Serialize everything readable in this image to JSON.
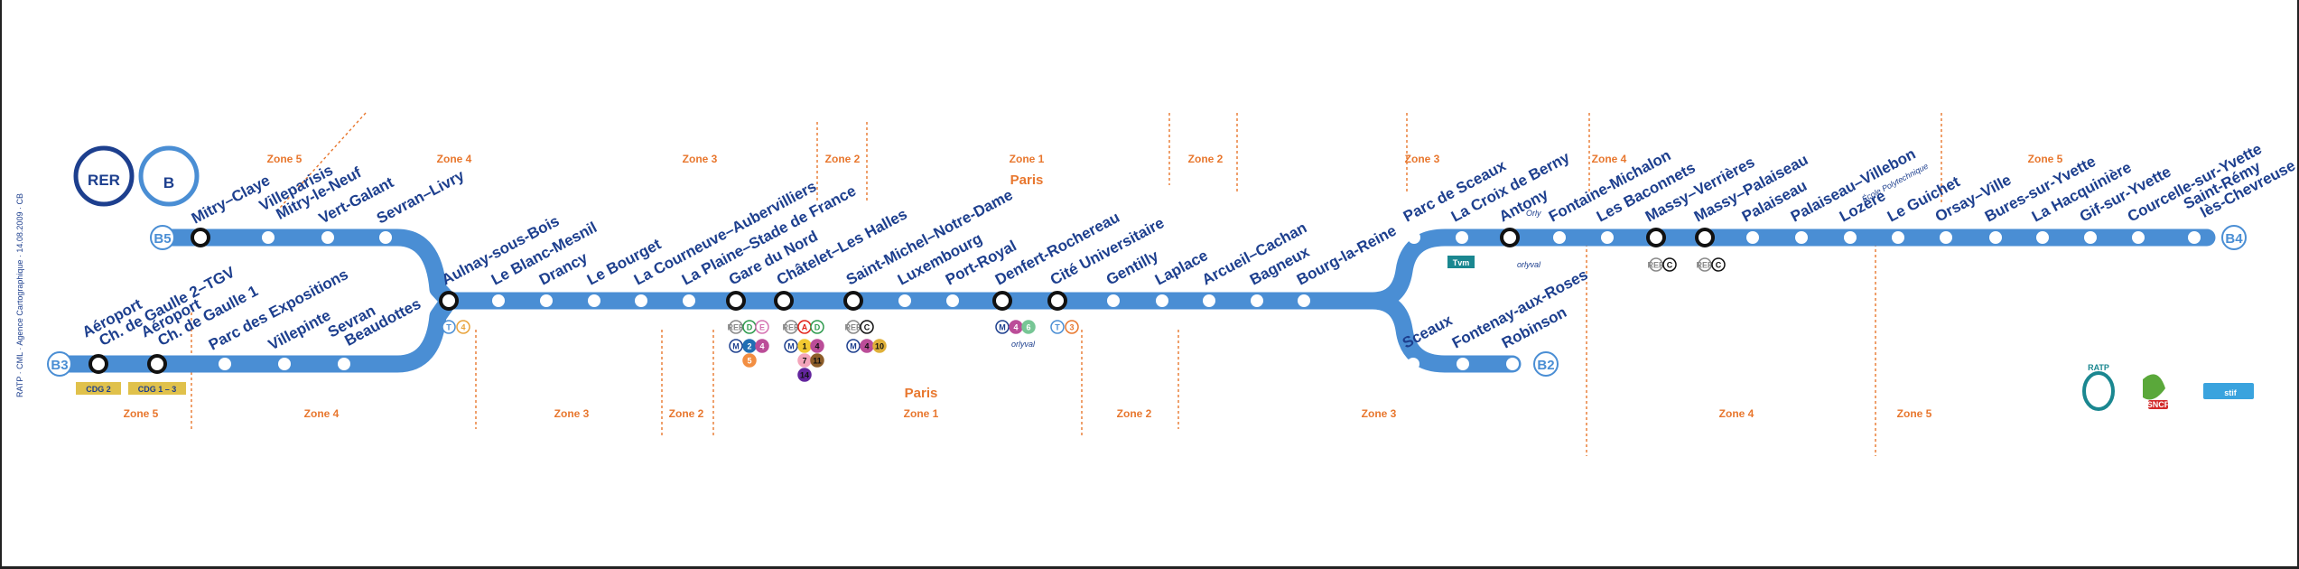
{
  "logo": {
    "rer": "RER",
    "line": "B"
  },
  "colors": {
    "line": "#4a8ed4",
    "label": "#1d3f8e",
    "zone": "#e8772e",
    "access": "#2a5db0"
  },
  "branch_labels": {
    "b5": "B5",
    "b3": "B3",
    "b4": "B4",
    "b2": "B2"
  },
  "terminal_labels": {
    "cdg2": "CDG 2",
    "cdg13": "CDG 1 – 3"
  },
  "zones_top": [
    "Zone 5",
    "Zone 4",
    "Zone 3",
    "Zone 2",
    "Zone 1",
    "Zone 2",
    "Zone 3",
    "Zone 4",
    "Zone 5"
  ],
  "zones_bottom": [
    "Zone 5",
    "Zone 4",
    "Zone 3",
    "Zone 2",
    "Zone 1",
    "Zone 2",
    "Zone 3",
    "Zone 4",
    "Zone 5"
  ],
  "paris": {
    "top": "Paris",
    "bottom": "Paris"
  },
  "stations": {
    "b5": [
      "Mitry–Claye",
      "Villeparisis\nMitry-le-Neuf",
      "Vert-Galant",
      "Sevran–Livry"
    ],
    "b3": [
      "Aéroport\nCh. de Gaulle 2–TGV",
      "Aéroport\nCh. de Gaulle 1",
      "Parc des Expositions",
      "Villepinte",
      "Sevran\nBeaudottes"
    ],
    "trunk": [
      "Aulnay-sous-Bois",
      "Le Blanc-Mesnil",
      "Drancy",
      "Le Bourget",
      "La Courneuve–Aubervilliers",
      "La Plaine–Stade de France",
      "Gare du Nord",
      "Châtelet–Les Halles",
      "Saint-Michel–Notre-Dame",
      "Luxembourg",
      "Port-Royal",
      "Denfert-Rochereau",
      "Cité Universitaire",
      "Gentilly",
      "Laplace",
      "Arcueil–Cachan",
      "Bagneux",
      "Bourg-la-Reine"
    ],
    "b4": [
      "Parc de Sceaux",
      "La Croix de Berny",
      "Antony",
      "Fontaine-Michalon",
      "Les Baconnets",
      "Massy–Verrières",
      "Massy–Palaiseau",
      "Palaiseau",
      "Palaiseau–Villebon",
      "Lozère",
      "Le Guichet",
      "Orsay–Ville",
      "Bures-sur-Yvette",
      "La Hacquinière",
      "Gif-sur-Yvette",
      "Courcelle-sur-Yvette",
      "Saint-Rémy\nlès-Chevreuse"
    ],
    "b2": [
      "Sceaux",
      "Fontenay-aux-Roses",
      "Robinson"
    ]
  },
  "station_subs": {
    "antony": "Orly",
    "lozere": "École Polytechnique"
  },
  "connections": {
    "gare_du_nord": {
      "rer": [
        "D",
        "E"
      ],
      "metro": [
        "2",
        "4",
        "5"
      ]
    },
    "chatelet": {
      "rer": [
        "A",
        "D"
      ],
      "metro": [
        "1",
        "4",
        "7",
        "11",
        "14"
      ]
    },
    "saint_michel": {
      "rer": [
        "C"
      ],
      "metro": [
        "4",
        "10"
      ]
    },
    "denfert": {
      "metro": [
        "4",
        "6"
      ]
    },
    "aulnay": {
      "tram": "T",
      "tram_line": "4"
    },
    "cite_u": {
      "tram": "T",
      "tram_line": "3"
    },
    "croix_de_berny": {
      "bus": "Tvm"
    },
    "massy_verrieres": {
      "rer": "C"
    },
    "massy_palaiseau": {
      "rer": "C"
    }
  },
  "orlyval": "orlyval",
  "operators": {
    "ratp": "RATP",
    "sncf": "SNCF",
    "stif": "stif"
  },
  "credit": "RATP · CML · Agence Cartographique · 14.08.2009 · CB"
}
